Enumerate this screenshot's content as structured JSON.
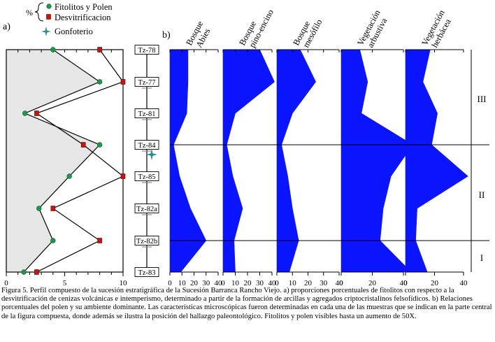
{
  "chart_data": [
    {
      "panel": "a)",
      "type": "line",
      "legend": {
        "symbol": "%",
        "entries": [
          {
            "name": "Fitolitos y Polen",
            "color": "#1a9a4a",
            "marker": "circle"
          },
          {
            "name": "Desvitrificacion",
            "color": "#cc1111",
            "marker": "square"
          },
          {
            "name": "Gonfoterio",
            "color": "#2e8b9a",
            "marker": "star"
          }
        ]
      },
      "xlim": [
        0,
        10
      ],
      "xticks": [
        "0",
        "5",
        "10"
      ],
      "samples": [
        "Tz-78",
        "Tz-77",
        "Tz-81",
        "Tz-84",
        "Tz-85",
        "Tz-82a",
        "Tz-82b",
        "Tz-83"
      ],
      "series": [
        {
          "name": "Fitolitos y Polen",
          "values": [
            4.0,
            8.0,
            1.6,
            8.0,
            5.4,
            2.8,
            4.0,
            1.5
          ]
        },
        {
          "name": "Desvitrificacion",
          "values": [
            8.0,
            10.0,
            2.6,
            6.6,
            10.0,
            4.0,
            8.0,
            2.6
          ]
        }
      ],
      "fill_color": "#e6e6e6"
    },
    {
      "panel": "b)",
      "type": "area",
      "xlim": [
        0,
        40
      ],
      "color": "#0a14ff",
      "columns": [
        {
          "title": [
            "Bosque",
            "Abies"
          ],
          "xticks": [
            "0",
            "10",
            "20",
            "30",
            "40"
          ],
          "values": [
            15,
            15,
            14,
            3,
            8,
            17,
            30,
            9
          ]
        },
        {
          "title": [
            "Bosque",
            "pino-encino"
          ],
          "xticks": [
            "0",
            "10",
            "20",
            "30",
            "40"
          ],
          "values": [
            30,
            42,
            10,
            3,
            8,
            16,
            9,
            10
          ]
        },
        {
          "title": [
            "Bosque",
            "mesófilo"
          ],
          "xticks": [
            "0",
            "10",
            "20",
            "30",
            "40"
          ],
          "values": [
            15,
            25,
            10,
            3,
            7,
            10,
            14,
            8
          ]
        },
        {
          "title": [
            "Vegetación",
            "arbustiva"
          ],
          "xticks": [
            "0",
            "20",
            "40"
          ],
          "values": [
            12,
            17,
            13,
            46,
            32,
            27,
            25,
            45
          ]
        },
        {
          "title": [
            "Vegetación",
            "herbácea"
          ],
          "xticks": [
            "0",
            "20",
            "40"
          ],
          "values": [
            17,
            12,
            22,
            18,
            43,
            8,
            7,
            15
          ]
        }
      ],
      "zones": [
        "III",
        "II",
        "I"
      ],
      "fossil_label": "Gonfoterio"
    }
  ],
  "caption": "Figura 5. Perfil compuesto de la sucesión estratigráfica de la Sucesión Barranca Rancho Viejo. a) proporciones porcentuales de fitolitos con respecto a la desvitrificación de cenizas volcánicas e intemperismo, determinado a partir de la formación de arcillas y agregados criptocristalinos felsofídicos. b) Relaciones porcentuales del polen y su ambiente dominante. Las características microscópicas fueron determinadas en cada una de las muestras que se indican en la parte central de la figura compuesta, donde además se ilustra la posición del hallazgo paleontológico. Fitolitos y polen visibles hasta un aumento de 50X."
}
